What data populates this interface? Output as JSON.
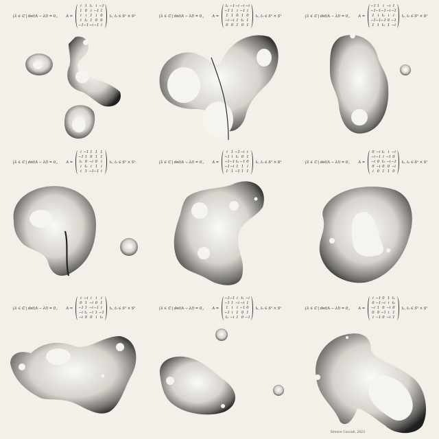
{
  "colors": {
    "background": "#f3f0ea",
    "ink": "#2b2b2b",
    "light": "#fbfaf6"
  },
  "cells": [
    {
      "lhs": "{λ ∈ ℂ | det(A − λI) = 0,",
      "aeq": "A =",
      "rhs": "t₁, t₂ ∈ S¹ × S¹",
      "matrix": [
        [
          "i",
          "1",
          "t₁",
          "i",
          "−1"
        ],
        [
          "1",
          "0",
          "i",
          "−1",
          "1"
        ],
        [
          "i",
          "i",
          "1",
          "i",
          "0"
        ],
        [
          "i",
          "t₂",
          "1",
          "0",
          "0"
        ],
        [
          "−1",
          "−1",
          "−i",
          "−1",
          "i"
        ]
      ]
    },
    {
      "lhs": "{λ ∈ ℂ | det(A − λI) = 0,",
      "aeq": "A =",
      "rhs": "t₁, t₂ ∈ S¹ × S¹",
      "matrix": [
        [
          "t₁",
          "−1",
          "−i",
          "−i",
          "−i"
        ],
        [
          "−1",
          "1",
          "i",
          "−1",
          "i"
        ],
        [
          "1",
          "1",
          "0",
          "1",
          "0"
        ],
        [
          "−i",
          "−i",
          "1",
          "t₂",
          "1"
        ],
        [
          "0",
          "0",
          "1",
          "0",
          "1"
        ]
      ]
    },
    {
      "lhs": "{λ ∈ ℂ | det(A − λI) = 0,",
      "aeq": "A =",
      "rhs": "t₁, t₂ ∈ S¹ × S¹",
      "matrix": [
        [
          "−1",
          "1",
          "i",
          "−i",
          "1"
        ],
        [
          "−1",
          "−1",
          "−1",
          "−i",
          "−1"
        ],
        [
          "1",
          "i",
          "t₁",
          "i",
          "i"
        ],
        [
          "−1",
          "−1",
          "−1",
          "0",
          "−1"
        ],
        [
          "1",
          "1",
          "t₂",
          "1",
          "−i"
        ]
      ]
    },
    {
      "lhs": "{λ ∈ ℂ | det(A − λI) = 0,",
      "aeq": "A =",
      "rhs": "t₁, t₂ ∈ S¹ × S¹",
      "matrix": [
        [
          "i",
          "−1",
          "1",
          "1",
          "1"
        ],
        [
          "−1",
          "1",
          "0",
          "1",
          "1"
        ],
        [
          "t₁",
          "0",
          "−i",
          "0",
          "i"
        ],
        [
          "i",
          "t₂",
          "i",
          "1",
          "i"
        ],
        [
          "i",
          "1",
          "−1",
          "−1",
          "i"
        ]
      ]
    },
    {
      "lhs": "{λ ∈ ℂ | det(A − λI) = 0,",
      "aeq": "A =",
      "rhs": "t₁, t₂ ∈ S¹ × S¹",
      "matrix": [
        [
          "i",
          "1",
          "−1",
          "−i",
          "i"
        ],
        [
          "−1",
          "i",
          "t₁",
          "0",
          "1"
        ],
        [
          "−1",
          "−1",
          "t₂",
          "−1",
          "0"
        ],
        [
          "−1",
          "−i",
          "1",
          "1",
          "i"
        ],
        [
          "1",
          "1",
          "−1",
          "1",
          "1"
        ]
      ]
    },
    {
      "lhs": "{λ ∈ ℂ | det(A − λI) = 0,",
      "aeq": "A =",
      "rhs": "t₁, t₂ ∈ S¹ × S¹",
      "matrix": [
        [
          "0",
          "−i",
          "t₁",
          "i",
          "−i"
        ],
        [
          "−i",
          "−1",
          "i",
          "−1",
          "0"
        ],
        [
          "−i",
          "0",
          "t₂",
          "−i",
          "−1"
        ],
        [
          "0",
          "−i",
          "0",
          "0",
          "−i"
        ],
        [
          "i",
          "0",
          "1",
          "1",
          "0"
        ]
      ]
    },
    {
      "lhs": "{λ ∈ ℂ | det(A − λI) = 0,",
      "aeq": "A =",
      "rhs": "t₁, t₂ ∈ S¹ × S¹",
      "matrix": [
        [
          "i",
          "−i",
          "i",
          "i",
          "i"
        ],
        [
          "0",
          "1",
          "−i",
          "0",
          "1"
        ],
        [
          "−1",
          "1",
          "−i",
          "−1",
          "i"
        ],
        [
          "−i",
          "t₁",
          "−i",
          "1",
          "−1"
        ],
        [
          "−i",
          "0",
          "0",
          "i",
          "t₂"
        ]
      ]
    },
    {
      "lhs": "{λ ∈ ℂ | det(A − λI) = 0,",
      "aeq": "A =",
      "rhs": "t₁, t₂ ∈ S¹ × S¹",
      "matrix": [
        [
          "−1",
          "−1",
          "i",
          "t₁",
          "−i"
        ],
        [
          "−1",
          "1",
          "−i",
          "−i",
          "1"
        ],
        [
          "1",
          "i",
          "i",
          "−1",
          "0"
        ],
        [
          "−1",
          "i",
          "1",
          "0",
          "1"
        ],
        [
          "t₂",
          "−i",
          "1",
          "0",
          "−1"
        ]
      ]
    },
    {
      "lhs": "{λ ∈ ℂ | det(A − λI) = 0,",
      "aeq": "A =",
      "rhs": "t₁, t₂ ∈ S¹ × S¹",
      "matrix": [
        [
          "i",
          "−1",
          "0",
          "1",
          "t₁"
        ],
        [
          "0",
          "−1",
          "−i",
          "i",
          "t₂"
        ],
        [
          "−i",
          "1",
          "0",
          "−i",
          "0"
        ],
        [
          "0",
          "0",
          "−1",
          "i",
          "1"
        ],
        [
          "i",
          "−1",
          "0",
          "−i",
          "1"
        ]
      ]
    }
  ],
  "signature": "Simone Conradi, 2023"
}
